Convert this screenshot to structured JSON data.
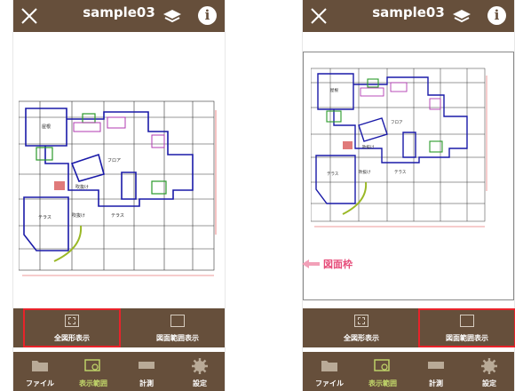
{
  "app": {
    "title": "sample03"
  },
  "icons": {
    "close": "close-icon",
    "layers": "layers-icon",
    "info": "info-icon",
    "info_glyph": "i"
  },
  "actions": {
    "fit_all_label": "全図形表示",
    "sheet_range_label": "図面範囲表示"
  },
  "tabs": [
    {
      "label": "ファイル",
      "icon": "folder-icon"
    },
    {
      "label": "表示範囲",
      "icon": "view-range-icon"
    },
    {
      "label": "計測",
      "icon": "ruler-icon"
    },
    {
      "label": "設定",
      "icon": "gear-icon"
    }
  ],
  "annotation": {
    "sheet_frame_label": "図面枠"
  },
  "floorplan": {
    "labels": [
      "屋根",
      "フロア",
      "テラス",
      "吹抜け",
      "吹抜け",
      "テラス"
    ]
  },
  "colors": {
    "brand": "#664f3b",
    "highlight": "#e8232a",
    "active_tab": "#c3d96b",
    "callout": "#e64d7a"
  }
}
